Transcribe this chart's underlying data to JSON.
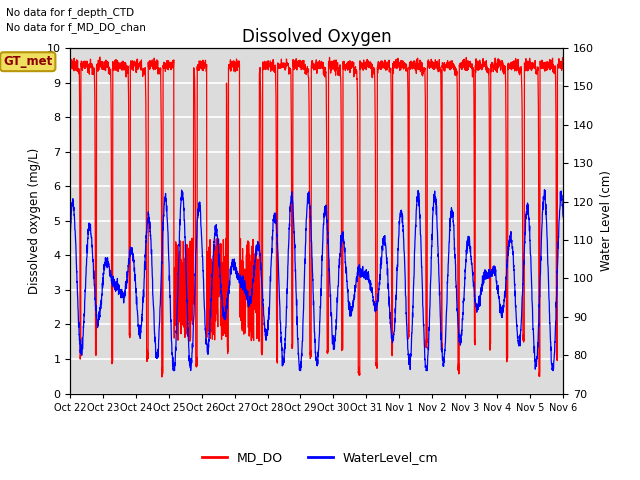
{
  "title": "Dissolved Oxygen",
  "ylabel_left": "Dissolved oxygen (mg/L)",
  "ylabel_right": "Water Level (cm)",
  "ylim_left": [
    0.0,
    10.0
  ],
  "ylim_right": [
    70,
    160
  ],
  "yticks_left": [
    0.0,
    1.0,
    2.0,
    3.0,
    4.0,
    5.0,
    6.0,
    7.0,
    8.0,
    9.0,
    10.0
  ],
  "yticks_right": [
    70,
    80,
    90,
    100,
    110,
    120,
    130,
    140,
    150,
    160
  ],
  "annotation1": "No data for f_depth_CTD",
  "annotation2": "No data for f_MD_DO_chan",
  "gt_label": "GT_met",
  "legend_labels": [
    "MD_DO",
    "WaterLevel_cm"
  ],
  "line_colors": [
    "red",
    "blue"
  ],
  "bg_color": "#dcdcdc",
  "grid_color": "white",
  "n_points": 3000,
  "do_high": 9.5,
  "do_low": 1.0,
  "wl_high": 120,
  "wl_low": 78,
  "total_days": 15
}
